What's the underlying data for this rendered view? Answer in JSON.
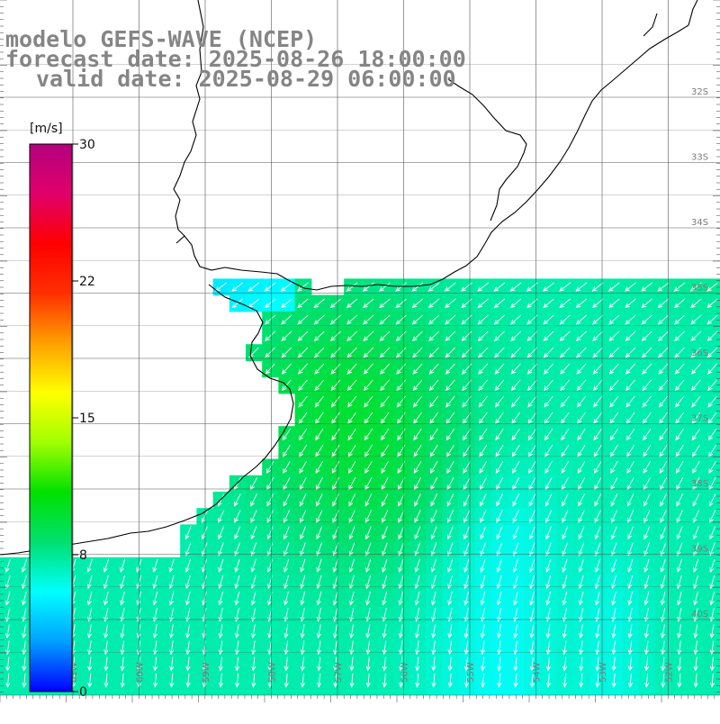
{
  "header": {
    "line1": "modelo GEFS-WAVE (NCEP)",
    "line2": "forecast date: 2025-08-26 18:00:00",
    "line3": "valid date: 2025-08-29 06:00:00"
  },
  "colorbar": {
    "unit": "[m/s]",
    "min": 0,
    "max": 30,
    "ticks": [
      {
        "value": 30,
        "label": "30"
      },
      {
        "value": 22.5,
        "label": "22"
      },
      {
        "value": 15,
        "label": "15"
      },
      {
        "value": 7.5,
        "label": "8"
      },
      {
        "value": 0,
        "label": "0"
      }
    ],
    "stops": [
      "#0000ff",
      "#00a0ff",
      "#00ffff",
      "#00e070",
      "#00e000",
      "#a0ff00",
      "#ffff00",
      "#ffa000",
      "#ff3000",
      "#ff0000",
      "#e0006a",
      "#b4007e"
    ]
  },
  "map": {
    "parallels": [
      {
        "lat": -32,
        "label": "32S"
      },
      {
        "lat": -33,
        "label": "33S"
      },
      {
        "lat": -34,
        "label": "34S"
      },
      {
        "lat": -35,
        "label": "35S"
      },
      {
        "lat": -36,
        "label": "36S"
      },
      {
        "lat": -37,
        "label": "37S"
      },
      {
        "lat": -38,
        "label": "38S"
      },
      {
        "lat": -39,
        "label": "39S"
      },
      {
        "lat": -40,
        "label": "40S"
      }
    ],
    "meridians": [
      {
        "lon": -61,
        "label": "61W"
      },
      {
        "lon": -60,
        "label": "60W"
      },
      {
        "lon": -59,
        "label": "59W"
      },
      {
        "lon": -58,
        "label": "58W"
      },
      {
        "lon": -57,
        "label": "57W"
      },
      {
        "lon": -56,
        "label": "56W"
      },
      {
        "lon": -55,
        "label": "55W"
      },
      {
        "lon": -54,
        "label": "54W"
      },
      {
        "lon": -53,
        "label": "53W"
      },
      {
        "lon": -52,
        "label": "52W"
      },
      {
        "lon": -51,
        "label": "51W"
      }
    ],
    "colors": {
      "land": "#ffffff",
      "coastline": "#000000",
      "grid": "#555555",
      "arrows": "#ffffff",
      "header_text": "#858585"
    }
  }
}
